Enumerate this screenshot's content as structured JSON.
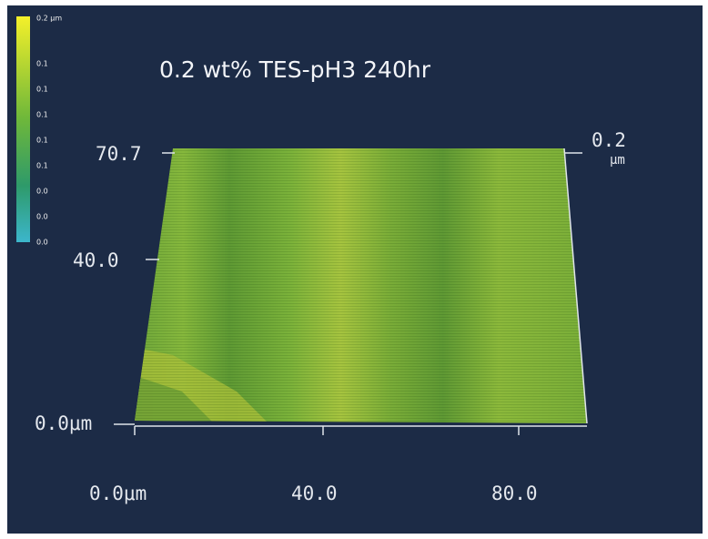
{
  "title": "0.2 wt% TES-pH3  240hr",
  "colorbar": {
    "labels": [
      "0.2 μm",
      "0.1",
      "0.1",
      "0.1",
      "0.1",
      "0.1",
      "0.0",
      "0.0",
      "0.0"
    ]
  },
  "y_axis": {
    "labels": [
      "70.7",
      "40.0",
      "0.0μm"
    ]
  },
  "z_axis": {
    "value": "0.2",
    "unit": "μm"
  },
  "x_axis": {
    "labels": [
      "0.0μm",
      "40.0",
      "80.0"
    ]
  }
}
